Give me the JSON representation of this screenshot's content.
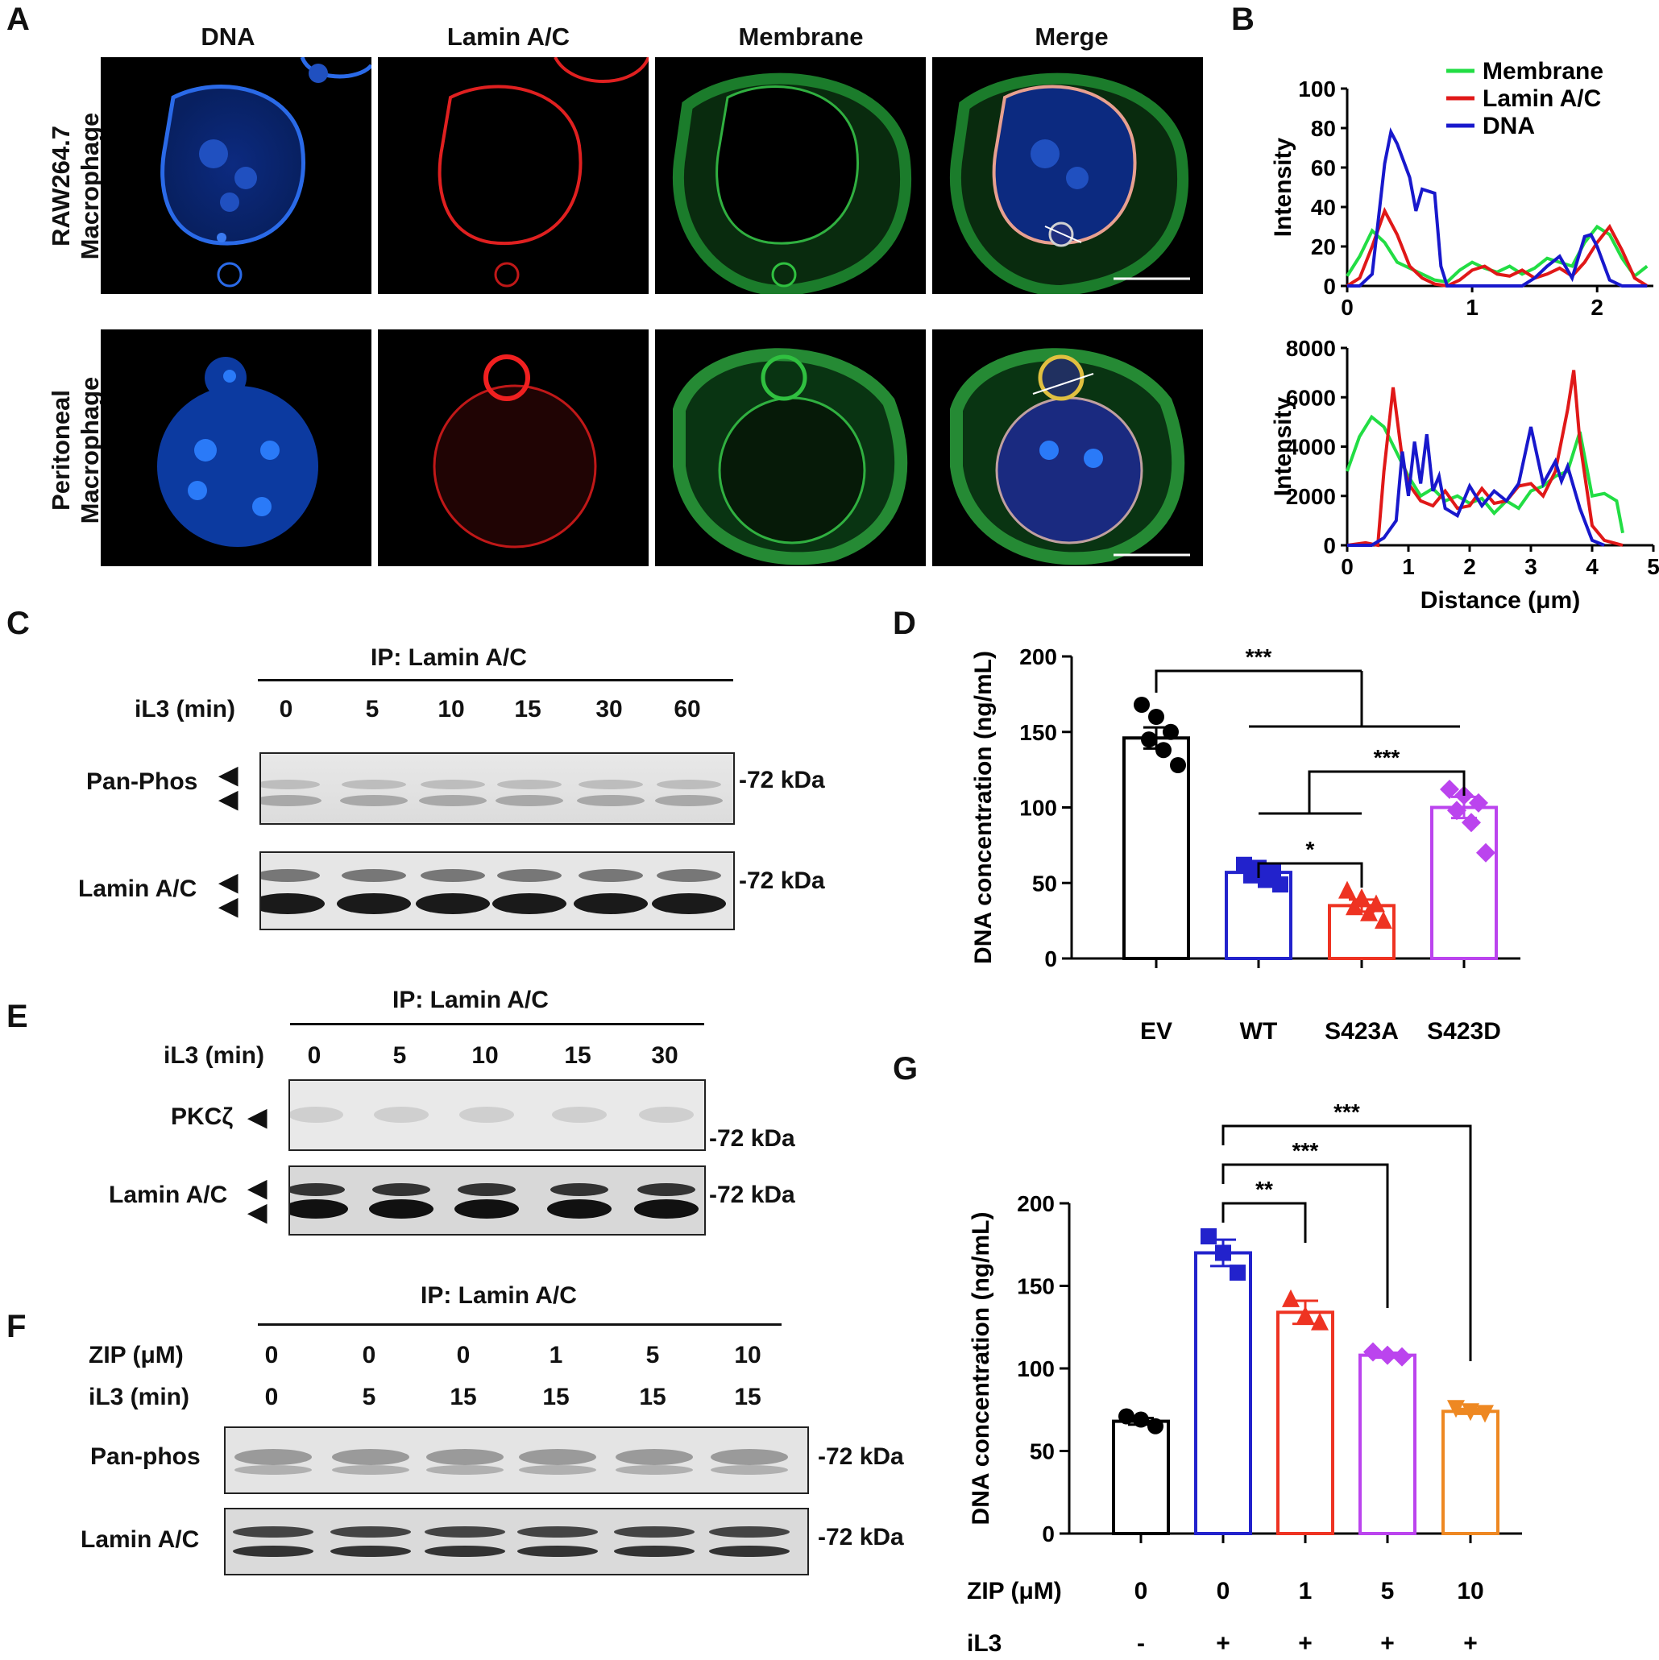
{
  "panels": {
    "A": "A",
    "B": "B",
    "C": "C",
    "D": "D",
    "E": "E",
    "F": "F",
    "G": "G"
  },
  "panelA": {
    "columns": [
      "DNA",
      "Lamin A/C",
      "Membrane",
      "Merge"
    ],
    "rows": [
      {
        "line1": "RAW264.7",
        "line2": "Macrophage"
      },
      {
        "line1": "Peritoneal",
        "line2": "Macrophage"
      }
    ],
    "channel_colors": {
      "dna": "#1f5fe0",
      "lamin": "#e01818",
      "membrane": "#22c040"
    }
  },
  "panelB": {
    "legend": [
      "Membrane",
      "Lamin A/C",
      "DNA"
    ],
    "ylabel": "Intensity",
    "xlabel": "Distance (μm)"
  },
  "chart_data": [
    {
      "id": "B-top",
      "type": "line",
      "ylabel": "Intensity",
      "xlabel": "",
      "xlim": [
        0,
        2.45
      ],
      "ylim": [
        0,
        100
      ],
      "xticks": [
        0,
        1,
        2
      ],
      "yticks": [
        0,
        20,
        40,
        60,
        80,
        100
      ],
      "series": [
        {
          "name": "Membrane",
          "color": "#22dd44",
          "x": [
            0,
            0.1,
            0.2,
            0.3,
            0.4,
            0.5,
            0.6,
            0.7,
            0.8,
            0.9,
            1.0,
            1.1,
            1.2,
            1.3,
            1.4,
            1.5,
            1.6,
            1.7,
            1.8,
            1.9,
            2.0,
            2.1,
            2.2,
            2.3,
            2.4
          ],
          "y": [
            5,
            15,
            28,
            22,
            12,
            9,
            6,
            3,
            2,
            8,
            12,
            9,
            7,
            10,
            6,
            9,
            14,
            12,
            10,
            22,
            30,
            26,
            14,
            5,
            10
          ]
        },
        {
          "name": "Lamin A/C",
          "color": "#e01818",
          "x": [
            0,
            0.1,
            0.2,
            0.3,
            0.4,
            0.5,
            0.6,
            0.7,
            0.8,
            0.9,
            1.0,
            1.1,
            1.2,
            1.3,
            1.4,
            1.5,
            1.6,
            1.7,
            1.8,
            1.9,
            2.0,
            2.1,
            2.2,
            2.3,
            2.4
          ],
          "y": [
            0,
            4,
            20,
            38,
            26,
            10,
            4,
            1,
            0,
            3,
            8,
            10,
            6,
            5,
            8,
            4,
            6,
            9,
            5,
            12,
            22,
            30,
            18,
            4,
            0
          ]
        },
        {
          "name": "DNA",
          "color": "#1818cc",
          "x": [
            0,
            0.1,
            0.2,
            0.3,
            0.35,
            0.4,
            0.5,
            0.55,
            0.6,
            0.7,
            0.75,
            0.8,
            0.9,
            1.0,
            1.2,
            1.4,
            1.5,
            1.6,
            1.7,
            1.8,
            1.9,
            1.95,
            2.0,
            2.1,
            2.2,
            2.4
          ],
          "y": [
            0,
            0,
            6,
            62,
            78,
            72,
            55,
            38,
            49,
            47,
            10,
            0,
            0,
            0,
            0,
            0,
            4,
            10,
            15,
            4,
            25,
            26,
            20,
            3,
            0,
            0
          ]
        }
      ]
    },
    {
      "id": "B-bottom",
      "type": "line",
      "ylabel": "Intensity",
      "xlabel": "Distance (μm)",
      "xlim": [
        0,
        5
      ],
      "ylim": [
        0,
        8000
      ],
      "xticks": [
        0,
        1,
        2,
        3,
        4,
        5
      ],
      "yticks": [
        0,
        2000,
        4000,
        6000,
        8000
      ],
      "series": [
        {
          "name": "Membrane",
          "color": "#22dd44",
          "x": [
            0,
            0.2,
            0.4,
            0.6,
            0.8,
            1.0,
            1.2,
            1.4,
            1.6,
            1.8,
            2.0,
            2.2,
            2.4,
            2.6,
            2.8,
            3.0,
            3.2,
            3.4,
            3.6,
            3.8,
            4.0,
            4.2,
            4.4,
            4.5
          ],
          "y": [
            3000,
            4400,
            5200,
            4800,
            3800,
            2800,
            2000,
            2300,
            1800,
            2000,
            1700,
            1900,
            1300,
            1800,
            1500,
            2200,
            2400,
            2800,
            3000,
            4600,
            2000,
            2100,
            1800,
            500
          ]
        },
        {
          "name": "Lamin A/C",
          "color": "#e01818",
          "x": [
            0,
            0.3,
            0.5,
            0.6,
            0.75,
            0.9,
            1.0,
            1.2,
            1.4,
            1.6,
            1.8,
            2.0,
            2.2,
            2.4,
            2.6,
            2.8,
            3.0,
            3.2,
            3.4,
            3.6,
            3.7,
            3.8,
            4.0,
            4.2,
            4.5
          ],
          "y": [
            0,
            100,
            0,
            3000,
            6400,
            3500,
            2500,
            1800,
            1600,
            2200,
            1500,
            1600,
            2300,
            1700,
            1800,
            2400,
            2500,
            2000,
            3000,
            5500,
            7100,
            4200,
            800,
            200,
            0
          ]
        },
        {
          "name": "DNA",
          "color": "#1818cc",
          "x": [
            0,
            0.2,
            0.4,
            0.6,
            0.8,
            0.9,
            1.0,
            1.1,
            1.2,
            1.3,
            1.4,
            1.5,
            1.6,
            1.8,
            2.0,
            2.2,
            2.4,
            2.6,
            2.8,
            3.0,
            3.2,
            3.4,
            3.5,
            3.6,
            3.8,
            4.0,
            4.2
          ],
          "y": [
            0,
            0,
            0,
            300,
            1000,
            3800,
            2000,
            4200,
            2500,
            4500,
            2200,
            2800,
            1500,
            1200,
            2400,
            1600,
            2200,
            1800,
            2500,
            4800,
            2500,
            3400,
            2600,
            3200,
            1500,
            200,
            0
          ]
        }
      ]
    },
    {
      "id": "D",
      "type": "bar",
      "ylabel": "DNA concentration (ng/mL)",
      "categories": [
        "EV",
        "WT",
        "S423A",
        "S423D"
      ],
      "values": [
        146,
        57,
        35,
        100
      ],
      "sem": [
        7,
        4,
        4,
        7
      ],
      "colors": [
        "#000000",
        "#2222cc",
        "#ee3322",
        "#bb44ee"
      ],
      "markers": [
        "circle",
        "square",
        "triangle",
        "diamond"
      ],
      "points": [
        [
          168,
          160,
          150,
          145,
          138,
          128
        ],
        [
          62,
          60,
          58,
          55,
          52,
          49
        ],
        [
          45,
          40,
          36,
          34,
          30,
          25
        ],
        [
          112,
          108,
          103,
          98,
          90,
          70
        ]
      ],
      "ylim": [
        0,
        200
      ],
      "yticks": [
        0,
        50,
        100,
        150,
        200
      ],
      "significance": [
        "***",
        "***",
        "*"
      ]
    },
    {
      "id": "G",
      "type": "bar",
      "ylabel": "DNA concentration (ng/mL)",
      "categories": [
        "0",
        "0",
        "1",
        "5",
        "10"
      ],
      "values": [
        68,
        170,
        134,
        108,
        74
      ],
      "sem": [
        2,
        8,
        7,
        1.5,
        1.5
      ],
      "colors": [
        "#000000",
        "#2222cc",
        "#ee3322",
        "#bb44ee",
        "#ee8822"
      ],
      "markers": [
        "circle",
        "square",
        "triangle",
        "diamond",
        "inverted-triangle"
      ],
      "points": [
        [
          71,
          69,
          65
        ],
        [
          180,
          170,
          158
        ],
        [
          142,
          132,
          128
        ],
        [
          110,
          108,
          107
        ],
        [
          76,
          74,
          73
        ]
      ],
      "ylim": [
        0,
        200
      ],
      "yticks": [
        0,
        50,
        100,
        150,
        200
      ],
      "row_labels": {
        "zip": "ZIP (μM)",
        "il3": "iL3"
      },
      "zip": [
        "0",
        "0",
        "1",
        "5",
        "10"
      ],
      "il3": [
        "-",
        "+",
        "+",
        "+",
        "+"
      ],
      "significance": [
        "**",
        "***",
        "***"
      ]
    }
  ],
  "panelC": {
    "ip": "IP: Lamin A/C",
    "cond_label": "iL3 (min)",
    "lanes": [
      "0",
      "5",
      "10",
      "15",
      "30",
      "60"
    ],
    "blots": [
      {
        "label": "Pan-Phos",
        "kda": "-72 kDa"
      },
      {
        "label": "Lamin A/C",
        "kda": "-72 kDa"
      }
    ]
  },
  "panelE": {
    "ip": "IP: Lamin A/C",
    "cond_label": "iL3 (min)",
    "lanes": [
      "0",
      "5",
      "10",
      "15",
      "30"
    ],
    "blots": [
      {
        "label": "PKCζ",
        "kda": "-72 kDa"
      },
      {
        "label": "Lamin A/C",
        "kda": "-72 kDa"
      }
    ]
  },
  "panelF": {
    "ip": "IP: Lamin A/C",
    "zip_label": "ZIP (μM)",
    "il3_label": "iL3 (min)",
    "zip": [
      "0",
      "0",
      "0",
      "1",
      "5",
      "10"
    ],
    "il3": [
      "0",
      "5",
      "15",
      "15",
      "15",
      "15"
    ],
    "blots": [
      {
        "label": "Pan-phos",
        "kda": "-72 kDa"
      },
      {
        "label": "Lamin A/C",
        "kda": "-72 kDa"
      }
    ]
  }
}
